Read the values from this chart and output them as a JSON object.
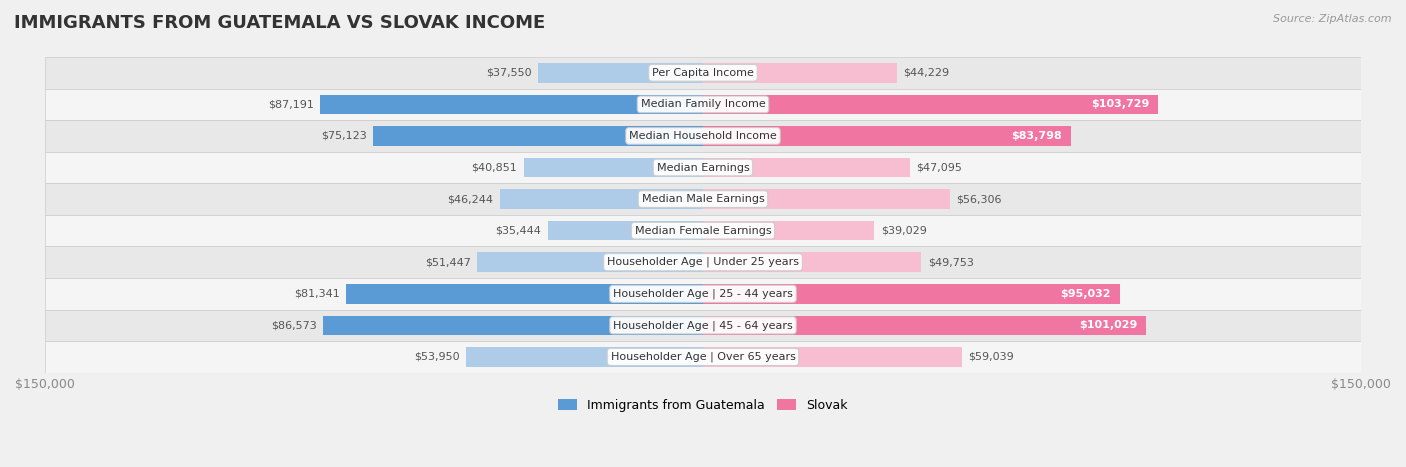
{
  "title": "IMMIGRANTS FROM GUATEMALA VS SLOVAK INCOME",
  "source": "Source: ZipAtlas.com",
  "categories": [
    "Per Capita Income",
    "Median Family Income",
    "Median Household Income",
    "Median Earnings",
    "Median Male Earnings",
    "Median Female Earnings",
    "Householder Age | Under 25 years",
    "Householder Age | 25 - 44 years",
    "Householder Age | 45 - 64 years",
    "Householder Age | Over 65 years"
  ],
  "guatemala_values": [
    37550,
    87191,
    75123,
    40851,
    46244,
    35444,
    51447,
    81341,
    86573,
    53950
  ],
  "slovak_values": [
    44229,
    103729,
    83798,
    47095,
    56306,
    39029,
    49753,
    95032,
    101029,
    59039
  ],
  "guatemala_color_light": "#aecce8",
  "guatemala_color_dark": "#5b9bd5",
  "slovak_color_light": "#f7bdd0",
  "slovak_color_dark": "#f075a0",
  "max_value": 150000,
  "bg_color": "#f0f0f0",
  "row_colors": [
    "#e8e8e8",
    "#f5f5f5"
  ],
  "label_color_outside": "#555555",
  "label_color_inside": "#ffffff",
  "title_color": "#333333",
  "axis_label_color": "#888888",
  "inside_threshold_guatemala": 60000,
  "inside_threshold_slovak": 60000,
  "category_label_fontsize": 8.0,
  "value_label_fontsize": 8.0
}
